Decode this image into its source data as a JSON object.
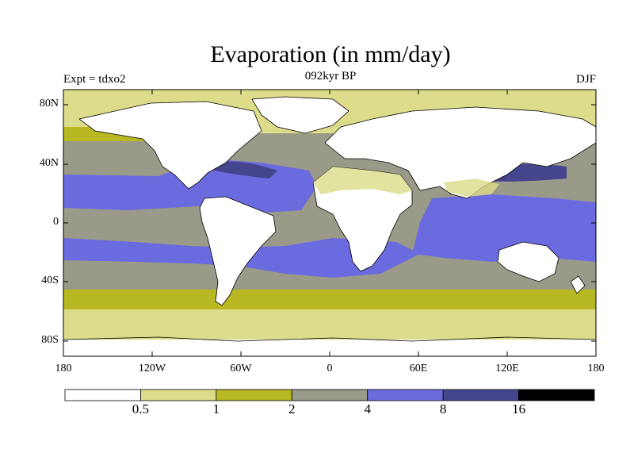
{
  "title": "Evaporation (in mm/day)",
  "experiment": "Expt = tdxo2",
  "period": "092kyr BP",
  "season": "DJF",
  "map": {
    "lat_ticks": [
      "80N",
      "40N",
      "0",
      "40S",
      "80S"
    ],
    "lon_ticks": [
      "180",
      "120W",
      "60W",
      "0",
      "60E",
      "120E",
      "180"
    ]
  },
  "colorbar": {
    "colors": [
      "#ffffff",
      "#dcdc8a",
      "#b8b822",
      "#9a9a88",
      "#6b6be0",
      "#45458e",
      "#000000"
    ],
    "labels": [
      "0.5",
      "1",
      "2",
      "4",
      "8",
      "16"
    ]
  },
  "colors": {
    "land": "#ffffff",
    "coast": "#000000"
  }
}
